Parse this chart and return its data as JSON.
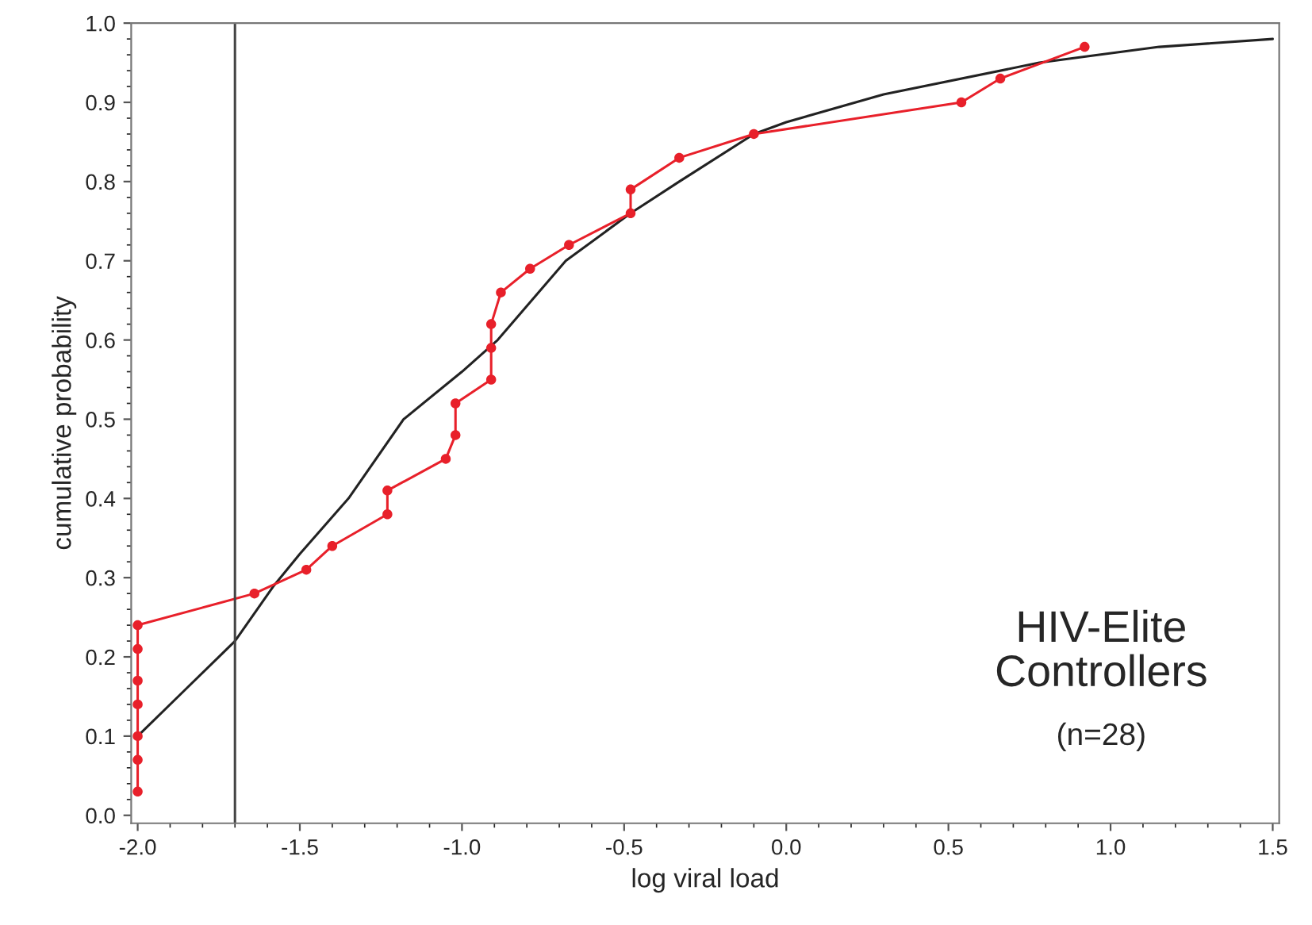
{
  "chart_data": {
    "type": "line",
    "xlabel": "log viral load",
    "ylabel": "cumulative probability",
    "xlim": [
      -2.02,
      1.52
    ],
    "ylim": [
      -0.01,
      1.0
    ],
    "xticks": [
      {
        "value": -2.0,
        "label": "-2.0"
      },
      {
        "value": -1.5,
        "label": "-1.5"
      },
      {
        "value": -1.0,
        "label": "-1.0"
      },
      {
        "value": -0.5,
        "label": "-0.5"
      },
      {
        "value": 0.0,
        "label": "0.0"
      },
      {
        "value": 0.5,
        "label": "0.5"
      },
      {
        "value": 1.0,
        "label": "1.0"
      },
      {
        "value": 1.5,
        "label": "1.5"
      }
    ],
    "yticks": [
      {
        "value": 0.0,
        "label": "0.0"
      },
      {
        "value": 0.1,
        "label": "0.1"
      },
      {
        "value": 0.2,
        "label": "0.2"
      },
      {
        "value": 0.3,
        "label": "0.3"
      },
      {
        "value": 0.4,
        "label": "0.4"
      },
      {
        "value": 0.5,
        "label": "0.5"
      },
      {
        "value": 0.6,
        "label": "0.6"
      },
      {
        "value": 0.7,
        "label": "0.7"
      },
      {
        "value": 0.8,
        "label": "0.8"
      },
      {
        "value": 0.9,
        "label": "0.9"
      },
      {
        "value": 1.0,
        "label": "1.0"
      }
    ],
    "grid": false,
    "legend": false,
    "series": [
      {
        "color": "#222222",
        "marker": "none",
        "x": [
          -2.0,
          -1.85,
          -1.75,
          -1.7,
          -1.58,
          -1.5,
          -1.35,
          -1.18,
          -1.0,
          -0.89,
          -0.68,
          -0.48,
          -0.33,
          -0.1,
          0.0,
          0.3,
          0.78,
          1.15,
          1.5
        ],
        "values": [
          0.1,
          0.16,
          0.2,
          0.22,
          0.29,
          0.33,
          0.4,
          0.5,
          0.56,
          0.6,
          0.7,
          0.76,
          0.8,
          0.86,
          0.875,
          0.91,
          0.95,
          0.97,
          0.98
        ]
      },
      {
        "color": "#e8202a",
        "marker": "circle",
        "x": [
          -2.0,
          -2.0,
          -2.0,
          -2.0,
          -2.0,
          -2.0,
          -2.0,
          -1.64,
          -1.48,
          -1.4,
          -1.23,
          -1.23,
          -1.05,
          -1.02,
          -1.02,
          -0.91,
          -0.91,
          -0.91,
          -0.88,
          -0.79,
          -0.67,
          -0.48,
          -0.48,
          -0.33,
          -0.1,
          0.54,
          0.66,
          0.92
        ],
        "values": [
          0.03,
          0.07,
          0.1,
          0.14,
          0.17,
          0.21,
          0.24,
          0.28,
          0.31,
          0.34,
          0.38,
          0.41,
          0.45,
          0.48,
          0.52,
          0.55,
          0.59,
          0.62,
          0.66,
          0.69,
          0.72,
          0.76,
          0.79,
          0.83,
          0.86,
          0.9,
          0.93,
          0.97
        ]
      }
    ],
    "ref_lines": [
      {
        "axis": "x",
        "value": -1.7,
        "color": "#444444"
      }
    ],
    "annotations": [
      "HIV-Elite\nControllers",
      "(n=28)"
    ]
  }
}
